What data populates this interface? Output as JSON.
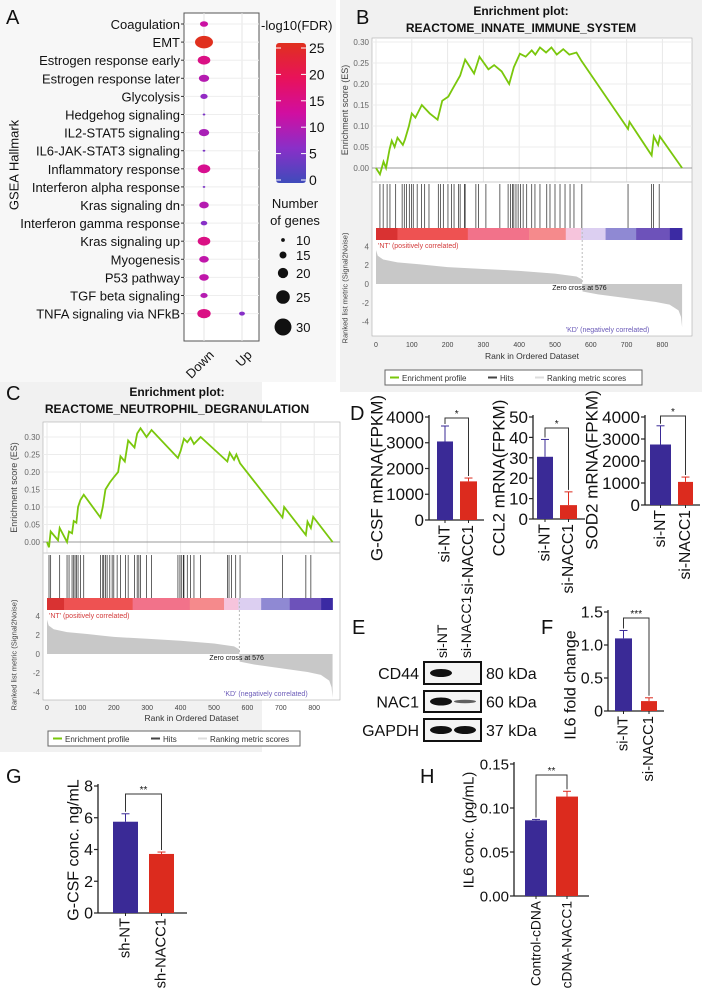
{
  "panel_labels": [
    "A",
    "B",
    "C",
    "D",
    "E",
    "F",
    "G",
    "H"
  ],
  "chart_data": [
    {
      "id": "A",
      "type": "scatter",
      "subtype": "dot-plot",
      "ylabel": "GSEA Hallmark",
      "x_categories": [
        "Down",
        "Up"
      ],
      "color_legend_title": "-log10(FDR)",
      "color_ticks": [
        0,
        5,
        10,
        15,
        20,
        25
      ],
      "color_scale": [
        "#3f4bbb",
        "#8a2fc8",
        "#d10ea0",
        "#e8125a",
        "#e0301e"
      ],
      "size_legend_title": [
        "Number",
        "of genes"
      ],
      "size_ticks": [
        10,
        15,
        20,
        25,
        30
      ],
      "rows": [
        "Coagulation",
        "EMT",
        "Estrogen response early",
        "Estrogen response later",
        "Glycolysis",
        "Hedgehog signaling",
        "IL2-STAT5 signaling",
        "IL6-JAK-STAT3 signaling",
        "Inflammatory response",
        "Interferon alpha response",
        "Kras signaling dn",
        "Interferon gamma response",
        "Kras signaling up",
        "Myogenesis",
        "P53 pathway",
        "TGF beta signaling",
        "TNFA signaling via NFkB"
      ],
      "points": [
        {
          "row": "Coagulation",
          "x": "Down",
          "fdr": 12,
          "genes": 15
        },
        {
          "row": "EMT",
          "x": "Down",
          "fdr": 25,
          "genes": 28
        },
        {
          "row": "Estrogen response early",
          "x": "Down",
          "fdr": 15,
          "genes": 21
        },
        {
          "row": "Estrogen response later",
          "x": "Down",
          "fdr": 10,
          "genes": 18
        },
        {
          "row": "Glycolysis",
          "x": "Down",
          "fdr": 7,
          "genes": 14
        },
        {
          "row": "Hedgehog signaling",
          "x": "Down",
          "fdr": 5,
          "genes": 8
        },
        {
          "row": "IL2-STAT5 signaling",
          "x": "Down",
          "fdr": 9,
          "genes": 18
        },
        {
          "row": "IL6-JAK-STAT3 signaling",
          "x": "Down",
          "fdr": 5,
          "genes": 8
        },
        {
          "row": "Inflammatory response",
          "x": "Down",
          "fdr": 14,
          "genes": 21
        },
        {
          "row": "Interferon alpha response",
          "x": "Down",
          "fdr": 5,
          "genes": 8
        },
        {
          "row": "Kras signaling dn",
          "x": "Down",
          "fdr": 10,
          "genes": 17
        },
        {
          "row": "Interferon gamma response",
          "x": "Down",
          "fdr": 6,
          "genes": 13
        },
        {
          "row": "Kras signaling up",
          "x": "Down",
          "fdr": 15,
          "genes": 21
        },
        {
          "row": "Myogenesis",
          "x": "Down",
          "fdr": 11,
          "genes": 17
        },
        {
          "row": "P53 pathway",
          "x": "Down",
          "fdr": 11,
          "genes": 17
        },
        {
          "row": "TGF beta signaling",
          "x": "Down",
          "fdr": 10,
          "genes": 14
        },
        {
          "row": "TNFA signaling via NFkB",
          "x": "Down",
          "fdr": 15,
          "genes": 22
        },
        {
          "row": "TNFA signaling via NFkB",
          "x": "Up",
          "fdr": 6,
          "genes": 12
        }
      ]
    },
    {
      "id": "B",
      "type": "line",
      "subtype": "gsea-enrichment",
      "title": [
        "Enrichment plot:",
        "REACTOME_INNATE_IMMUNE_SYSTEM"
      ],
      "ylabel_es": "Enrichment score (ES)",
      "ylabel_metric": "Ranked list metric (Signal2Noise)",
      "xlabel": "Rank in Ordered Dataset",
      "x_ticks": [
        0,
        100,
        200,
        300,
        400,
        500,
        600,
        700,
        800
      ],
      "es_ticks": [
        "0.00",
        "0.05",
        "0.10",
        "0.15",
        "0.20",
        "0.25",
        "0.30"
      ],
      "metric_ticks": [
        4,
        2,
        0,
        -2,
        -4
      ],
      "n_genes": 855,
      "es_curve": [
        [
          0,
          0
        ],
        [
          11,
          -0.015
        ],
        [
          21,
          0.015
        ],
        [
          28,
          0.0
        ],
        [
          38,
          0.045
        ],
        [
          44,
          0.065
        ],
        [
          52,
          0.05
        ],
        [
          60,
          0.072
        ],
        [
          75,
          0.055
        ],
        [
          81,
          0.068
        ],
        [
          92,
          0.1
        ],
        [
          100,
          0.13
        ],
        [
          110,
          0.12
        ],
        [
          128,
          0.15
        ],
        [
          150,
          0.13
        ],
        [
          172,
          0.115
        ],
        [
          185,
          0.16
        ],
        [
          202,
          0.17
        ],
        [
          215,
          0.19
        ],
        [
          235,
          0.22
        ],
        [
          249,
          0.258
        ],
        [
          274,
          0.225
        ],
        [
          289,
          0.265
        ],
        [
          314,
          0.235
        ],
        [
          330,
          0.245
        ],
        [
          351,
          0.23
        ],
        [
          372,
          0.2
        ],
        [
          385,
          0.24
        ],
        [
          402,
          0.272
        ],
        [
          418,
          0.265
        ],
        [
          435,
          0.28
        ],
        [
          445,
          0.27
        ],
        [
          458,
          0.287
        ],
        [
          475,
          0.275
        ],
        [
          490,
          0.287
        ],
        [
          505,
          0.27
        ],
        [
          523,
          0.283
        ],
        [
          540,
          0.27
        ],
        [
          560,
          0.275
        ],
        [
          574,
          0.255
        ],
        [
          704,
          0.093
        ],
        [
          708,
          0.11
        ],
        [
          770,
          0.03
        ],
        [
          776,
          0.075
        ],
        [
          788,
          0.055
        ],
        [
          793,
          0.075
        ],
        [
          855,
          0.0
        ]
      ],
      "hits": [
        11,
        20,
        31,
        39,
        55,
        73,
        79,
        85,
        93,
        99,
        104,
        115,
        127,
        136,
        148,
        174,
        180,
        188,
        201,
        211,
        218,
        230,
        235,
        247,
        249,
        279,
        286,
        307,
        346,
        369,
        376,
        381,
        385,
        391,
        397,
        404,
        411,
        421,
        435,
        444,
        458,
        477,
        486,
        500,
        514,
        528,
        542,
        553,
        575,
        704,
        770,
        775,
        791
      ],
      "metric_curve": [
        [
          0,
          3.6
        ],
        [
          5,
          3.0
        ],
        [
          20,
          2.6
        ],
        [
          60,
          2.3
        ],
        [
          120,
          2.1
        ],
        [
          200,
          1.8
        ],
        [
          300,
          1.6
        ],
        [
          400,
          1.4
        ],
        [
          500,
          1.1
        ],
        [
          560,
          0.8
        ],
        [
          575,
          0.5
        ],
        [
          576,
          0
        ],
        [
          577,
          -0.8
        ],
        [
          620,
          -1.1
        ],
        [
          700,
          -1.5
        ],
        [
          780,
          -1.9
        ],
        [
          820,
          -2.2
        ],
        [
          845,
          -2.8
        ],
        [
          852,
          -3.5
        ],
        [
          855,
          -4.6
        ]
      ],
      "zero_cross_label": "Zero cross at 576",
      "pos_label": "'NT' (positively correlated)",
      "neg_label": "'KD' (negatively correlated)",
      "rank_colorbar": [
        [
          0,
          0.07,
          "#d93232"
        ],
        [
          0.07,
          0.3,
          "#ee5252"
        ],
        [
          0.3,
          0.5,
          "#f2728a"
        ],
        [
          0.5,
          0.62,
          "#f58a8c"
        ],
        [
          0.62,
          0.67,
          "#f6c4dc"
        ],
        [
          0.67,
          0.75,
          "#dccff1"
        ],
        [
          0.75,
          0.85,
          "#8f89d3"
        ],
        [
          0.85,
          0.96,
          "#6d52ba"
        ],
        [
          0.96,
          1,
          "#3b2aa3"
        ]
      ],
      "legend": [
        "Enrichment profile",
        "Hits",
        "Ranking metric scores"
      ],
      "colors": {
        "profile": "#7ac70c",
        "hits": "#222222",
        "metric": "#c8c8c8"
      }
    },
    {
      "id": "C",
      "type": "line",
      "subtype": "gsea-enrichment",
      "title": [
        "Enrichment plot:",
        "REACTOME_NEUTROPHIL_DEGRANULATION"
      ],
      "ylabel_es": "Enrichment score (ES)",
      "ylabel_metric": "Ranked list metric (Signal2Noise)",
      "xlabel": "Rank in Ordered Dataset",
      "x_ticks": [
        0,
        100,
        200,
        300,
        400,
        500,
        600,
        700,
        800
      ],
      "es_ticks": [
        "0.00",
        "0.05",
        "0.10",
        "0.15",
        "0.20",
        "0.25",
        "0.30"
      ],
      "metric_ticks": [
        4,
        2,
        0,
        -2,
        -4
      ],
      "n_genes": 855,
      "es_curve": [
        [
          0,
          0
        ],
        [
          6,
          -0.015
        ],
        [
          11,
          0.03
        ],
        [
          33,
          0.005
        ],
        [
          38,
          0.04
        ],
        [
          60,
          0.0
        ],
        [
          66,
          0.03
        ],
        [
          75,
          0.025
        ],
        [
          80,
          0.06
        ],
        [
          88,
          0.055
        ],
        [
          93,
          0.1
        ],
        [
          100,
          0.12
        ],
        [
          110,
          0.135
        ],
        [
          160,
          0.07
        ],
        [
          167,
          0.1
        ],
        [
          175,
          0.15
        ],
        [
          188,
          0.17
        ],
        [
          200,
          0.185
        ],
        [
          213,
          0.2
        ],
        [
          220,
          0.245
        ],
        [
          233,
          0.23
        ],
        [
          243,
          0.29
        ],
        [
          262,
          0.27
        ],
        [
          270,
          0.31
        ],
        [
          280,
          0.325
        ],
        [
          298,
          0.3
        ],
        [
          313,
          0.32
        ],
        [
          392,
          0.24
        ],
        [
          400,
          0.26
        ],
        [
          410,
          0.295
        ],
        [
          420,
          0.285
        ],
        [
          430,
          0.298
        ],
        [
          440,
          0.28
        ],
        [
          450,
          0.29
        ],
        [
          460,
          0.3
        ],
        [
          540,
          0.23
        ],
        [
          547,
          0.255
        ],
        [
          560,
          0.235
        ],
        [
          567,
          0.25
        ],
        [
          578,
          0.225
        ],
        [
          705,
          0.07
        ],
        [
          710,
          0.1
        ],
        [
          775,
          0.02
        ],
        [
          780,
          0.058
        ],
        [
          790,
          0.04
        ],
        [
          797,
          0.072
        ],
        [
          855,
          0.0
        ]
      ],
      "hits": [
        6,
        11,
        38,
        60,
        66,
        75,
        80,
        84,
        88,
        93,
        100,
        110,
        160,
        167,
        170,
        175,
        180,
        188,
        195,
        200,
        210,
        220,
        235,
        243,
        262,
        270,
        275,
        280,
        298,
        313,
        392,
        398,
        402,
        408,
        410,
        420,
        430,
        440,
        460,
        540,
        545,
        552,
        565,
        578,
        705,
        775,
        790
      ],
      "metric_curve": [
        [
          0,
          3.6
        ],
        [
          5,
          3.0
        ],
        [
          20,
          2.6
        ],
        [
          60,
          2.3
        ],
        [
          120,
          2.1
        ],
        [
          200,
          1.8
        ],
        [
          300,
          1.6
        ],
        [
          400,
          1.4
        ],
        [
          500,
          1.1
        ],
        [
          560,
          0.8
        ],
        [
          575,
          0.5
        ],
        [
          576,
          0
        ],
        [
          577,
          -0.8
        ],
        [
          620,
          -1.1
        ],
        [
          700,
          -1.5
        ],
        [
          780,
          -1.9
        ],
        [
          820,
          -2.2
        ],
        [
          845,
          -2.8
        ],
        [
          852,
          -3.5
        ],
        [
          855,
          -4.6
        ]
      ],
      "zero_cross_label": "Zero cross at 576",
      "pos_label": "'NT' (positively correlated)",
      "neg_label": "'KD' (negatively correlated)",
      "rank_colorbar": [
        [
          0,
          0.06,
          "#d93232"
        ],
        [
          0.06,
          0.3,
          "#ee5252"
        ],
        [
          0.3,
          0.5,
          "#f2728a"
        ],
        [
          0.5,
          0.62,
          "#f58a8c"
        ],
        [
          0.62,
          0.67,
          "#f6c4dc"
        ],
        [
          0.67,
          0.75,
          "#dccff1"
        ],
        [
          0.75,
          0.85,
          "#8f89d3"
        ],
        [
          0.85,
          0.96,
          "#6d52ba"
        ],
        [
          0.96,
          1,
          "#3b2aa3"
        ]
      ],
      "legend": [
        "Enrichment profile",
        "Hits",
        "Ranking metric scores"
      ],
      "colors": {
        "profile": "#7ac70c",
        "hits": "#222222",
        "metric": "#c8c8c8"
      }
    },
    {
      "id": "D1",
      "type": "bar",
      "ylabel": "G-CSF mRNA(FPKM)",
      "categories": [
        "si-NT",
        "si-NACC1"
      ],
      "values": [
        3050,
        1500
      ],
      "errors": [
        600,
        130
      ],
      "ylim": [
        0,
        4000
      ],
      "yticks": [
        0,
        1000,
        2000,
        3000,
        4000
      ],
      "significance": "*"
    },
    {
      "id": "D2",
      "type": "bar",
      "ylabel": "CCL2 mRNA(FPKM)",
      "categories": [
        "si-NT",
        "si-NACC1"
      ],
      "values": [
        30.5,
        6.8
      ],
      "errors": [
        8.5,
        6.5
      ],
      "ylim": [
        0,
        50
      ],
      "yticks": [
        0,
        10,
        20,
        30,
        40,
        50
      ],
      "significance": "*"
    },
    {
      "id": "D3",
      "type": "bar",
      "ylabel": "SOD2 mRNA(FPKM)",
      "categories": [
        "si-NT",
        "si-NACC1"
      ],
      "values": [
        2750,
        1050
      ],
      "errors": [
        850,
        220
      ],
      "ylim": [
        0,
        4000
      ],
      "yticks": [
        0,
        1000,
        2000,
        3000,
        4000
      ],
      "significance": "*"
    },
    {
      "id": "F",
      "type": "bar",
      "ylabel": "IL6 fold change",
      "categories": [
        "si-NT",
        "si-NACC1"
      ],
      "values": [
        1.1,
        0.15
      ],
      "errors": [
        0.12,
        0.05
      ],
      "ylim": [
        0,
        1.5
      ],
      "yticks": [
        "0",
        "0.5",
        "1.0",
        "1.5"
      ],
      "significance": "***"
    },
    {
      "id": "G",
      "type": "bar",
      "ylabel": "G-CSF conc. ng/mL",
      "categories": [
        "sh-NT",
        "sh-NACC1"
      ],
      "values": [
        5.75,
        3.72
      ],
      "errors": [
        0.5,
        0.12
      ],
      "ylim": [
        0,
        8
      ],
      "yticks": [
        0,
        2,
        4,
        6,
        8
      ],
      "significance": "**"
    },
    {
      "id": "H",
      "type": "bar",
      "ylabel": "IL6 conc. (pg/mL)",
      "categories": [
        "Control-cDNA",
        "cDNA-NACC1"
      ],
      "values": [
        0.086,
        0.113
      ],
      "errors": [
        0.001,
        0.006
      ],
      "ylim": [
        0,
        0.15
      ],
      "yticks": [
        "0.00",
        "0.05",
        "0.10",
        "0.15"
      ],
      "significance": "**"
    }
  ],
  "bar_colors": [
    "#3a2a96",
    "#dc2b1e"
  ],
  "western_blot": {
    "lanes": [
      "si-NT",
      "si-NACC1"
    ],
    "bands": [
      {
        "protein": "CD44",
        "size": "80 kDa",
        "intensity": [
          1.0,
          0.0
        ]
      },
      {
        "protein": "NAC1",
        "size": "60 kDa",
        "intensity": [
          1.0,
          0.35
        ]
      },
      {
        "protein": "GAPDH",
        "size": "37 kDa",
        "intensity": [
          1.0,
          1.0
        ]
      }
    ]
  }
}
